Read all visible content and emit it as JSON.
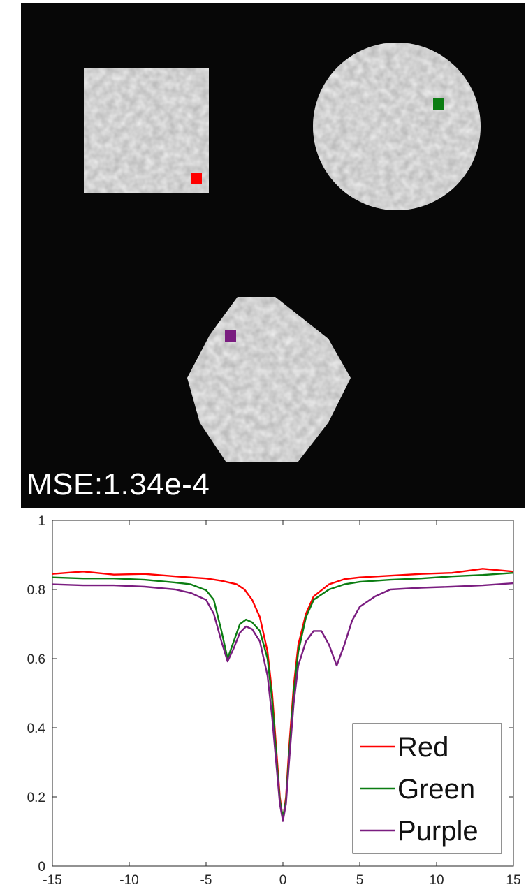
{
  "image_panel": {
    "mse_label": "MSE:1.34e-4",
    "background_color": "#070707",
    "objects": [
      {
        "name": "square",
        "shape": "square"
      },
      {
        "name": "circle",
        "shape": "circle"
      },
      {
        "name": "octagon",
        "shape": "octagon"
      }
    ],
    "markers": [
      {
        "name": "Red",
        "color": "#ff0000"
      },
      {
        "name": "Green",
        "color": "#0b7d12"
      },
      {
        "name": "Purple",
        "color": "#7a1d80"
      }
    ]
  },
  "chart_data": {
    "type": "line",
    "title": "",
    "xlabel": "",
    "ylabel": "",
    "xlim": [
      -15,
      15
    ],
    "ylim": [
      0,
      1
    ],
    "x_ticks": [
      -15,
      -10,
      -5,
      0,
      5,
      10,
      15
    ],
    "y_ticks": [
      0,
      0.2,
      0.4,
      0.6,
      0.8,
      1
    ],
    "x_tick_labels": [
      "-15",
      "-10",
      "-5",
      "0",
      "5",
      "10",
      "15"
    ],
    "y_tick_labels": [
      "0",
      "0.2",
      "0.4",
      "0.6",
      "0.8",
      "1"
    ],
    "grid": false,
    "legend_position": "bottom-right",
    "series": [
      {
        "name": "Red",
        "color": "#ff0000",
        "points": [
          [
            -15,
            0.845
          ],
          [
            -13,
            0.852
          ],
          [
            -11,
            0.843
          ],
          [
            -9,
            0.845
          ],
          [
            -7,
            0.838
          ],
          [
            -6,
            0.835
          ],
          [
            -5,
            0.832
          ],
          [
            -4,
            0.825
          ],
          [
            -3,
            0.815
          ],
          [
            -2.5,
            0.8
          ],
          [
            -2,
            0.77
          ],
          [
            -1.5,
            0.72
          ],
          [
            -1,
            0.62
          ],
          [
            -0.7,
            0.5
          ],
          [
            -0.4,
            0.32
          ],
          [
            -0.2,
            0.2
          ],
          [
            0,
            0.135
          ],
          [
            0.2,
            0.2
          ],
          [
            0.4,
            0.34
          ],
          [
            0.7,
            0.52
          ],
          [
            1,
            0.64
          ],
          [
            1.5,
            0.73
          ],
          [
            2,
            0.78
          ],
          [
            3,
            0.815
          ],
          [
            4,
            0.83
          ],
          [
            5,
            0.835
          ],
          [
            7,
            0.84
          ],
          [
            9,
            0.845
          ],
          [
            11,
            0.848
          ],
          [
            13,
            0.86
          ],
          [
            15,
            0.852
          ]
        ]
      },
      {
        "name": "Green",
        "color": "#0b7d12",
        "points": [
          [
            -15,
            0.835
          ],
          [
            -13,
            0.832
          ],
          [
            -11,
            0.832
          ],
          [
            -9,
            0.828
          ],
          [
            -7,
            0.82
          ],
          [
            -6,
            0.815
          ],
          [
            -5,
            0.798
          ],
          [
            -4.5,
            0.77
          ],
          [
            -4,
            0.68
          ],
          [
            -3.6,
            0.6
          ],
          [
            -3.2,
            0.65
          ],
          [
            -2.8,
            0.7
          ],
          [
            -2.4,
            0.713
          ],
          [
            -2,
            0.705
          ],
          [
            -1.5,
            0.68
          ],
          [
            -1,
            0.6
          ],
          [
            -0.7,
            0.48
          ],
          [
            -0.4,
            0.3
          ],
          [
            -0.2,
            0.19
          ],
          [
            0,
            0.14
          ],
          [
            0.2,
            0.19
          ],
          [
            0.4,
            0.32
          ],
          [
            0.7,
            0.5
          ],
          [
            1,
            0.62
          ],
          [
            1.5,
            0.72
          ],
          [
            2,
            0.77
          ],
          [
            3,
            0.8
          ],
          [
            4,
            0.815
          ],
          [
            5,
            0.822
          ],
          [
            7,
            0.828
          ],
          [
            9,
            0.832
          ],
          [
            11,
            0.838
          ],
          [
            13,
            0.842
          ],
          [
            15,
            0.848
          ]
        ]
      },
      {
        "name": "Purple",
        "color": "#7a1d80",
        "points": [
          [
            -15,
            0.815
          ],
          [
            -13,
            0.812
          ],
          [
            -11,
            0.812
          ],
          [
            -9,
            0.808
          ],
          [
            -7,
            0.8
          ],
          [
            -6,
            0.79
          ],
          [
            -5,
            0.77
          ],
          [
            -4.5,
            0.73
          ],
          [
            -4,
            0.65
          ],
          [
            -3.6,
            0.592
          ],
          [
            -3.2,
            0.63
          ],
          [
            -2.8,
            0.675
          ],
          [
            -2.4,
            0.693
          ],
          [
            -2,
            0.685
          ],
          [
            -1.5,
            0.65
          ],
          [
            -1,
            0.55
          ],
          [
            -0.7,
            0.43
          ],
          [
            -0.4,
            0.28
          ],
          [
            -0.2,
            0.18
          ],
          [
            0,
            0.13
          ],
          [
            0.2,
            0.18
          ],
          [
            0.4,
            0.3
          ],
          [
            0.7,
            0.47
          ],
          [
            1,
            0.58
          ],
          [
            1.5,
            0.65
          ],
          [
            2,
            0.68
          ],
          [
            2.5,
            0.68
          ],
          [
            3,
            0.64
          ],
          [
            3.5,
            0.58
          ],
          [
            4,
            0.64
          ],
          [
            4.5,
            0.71
          ],
          [
            5,
            0.75
          ],
          [
            6,
            0.78
          ],
          [
            7,
            0.8
          ],
          [
            9,
            0.805
          ],
          [
            11,
            0.808
          ],
          [
            13,
            0.812
          ],
          [
            15,
            0.818
          ]
        ]
      }
    ]
  }
}
